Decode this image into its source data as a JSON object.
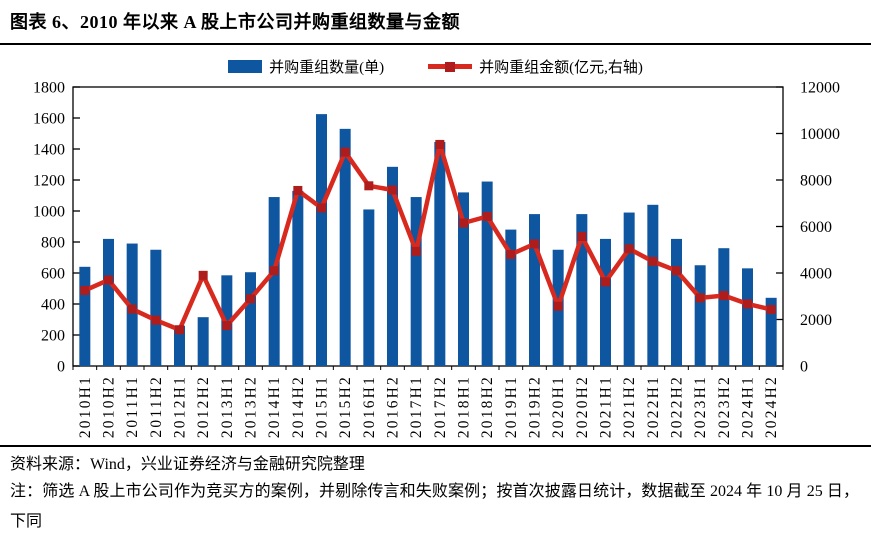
{
  "figure": {
    "title": "图表 6、2010 年以来 A 股上市公司并购重组数量与金额",
    "source": "资料来源：Wind，兴业证券经济与金融研究院整理",
    "note": "注：筛选 A 股上市公司作为竞买方的案例，并剔除传言和失败案例；按首次披露日统计，数据截至 2024 年 10 月 25 日，下同"
  },
  "chart_data": {
    "type": "bar",
    "subtype": "bar+line-dual-axis",
    "categories": [
      "2010H1",
      "2010H2",
      "2011H1",
      "2011H2",
      "2012H1",
      "2012H2",
      "2013H1",
      "2013H2",
      "2014H1",
      "2014H2",
      "2015H1",
      "2015H2",
      "2016H1",
      "2016H2",
      "2017H1",
      "2017H2",
      "2018H1",
      "2018H2",
      "2019H1",
      "2019H2",
      "2020H1",
      "2020H2",
      "2021H1",
      "2021H2",
      "2022H1",
      "2022H2",
      "2023H1",
      "2023H2",
      "2024H1",
      "2024H2"
    ],
    "series": [
      {
        "name": "并购重组数量(单)",
        "type": "bar",
        "axis": "left",
        "color": "#0F56A0",
        "values": [
          640,
          820,
          790,
          750,
          260,
          315,
          585,
          605,
          1090,
          1130,
          1625,
          1530,
          1010,
          1285,
          1090,
          1445,
          1120,
          1190,
          880,
          980,
          750,
          980,
          820,
          990,
          1040,
          820,
          650,
          760,
          630,
          440
        ]
      },
      {
        "name": "并购重组金额(亿元,右轴)",
        "type": "line",
        "axis": "right",
        "color": "#D8291F",
        "marker_color": "#AF1C1C",
        "values": [
          3250,
          3700,
          2450,
          1970,
          1560,
          3900,
          1740,
          2890,
          4100,
          7550,
          6800,
          9200,
          7750,
          7570,
          4930,
          9530,
          6150,
          6430,
          4800,
          5250,
          2570,
          5570,
          3620,
          5040,
          4500,
          4100,
          2930,
          3030,
          2670,
          2430
        ]
      }
    ],
    "left_axis": {
      "min": 0,
      "max": 1800,
      "step": 200
    },
    "right_axis": {
      "min": 0,
      "max": 12000,
      "step": 2000
    },
    "grid": false,
    "legend_position": "top",
    "axis_color": "#000000"
  }
}
